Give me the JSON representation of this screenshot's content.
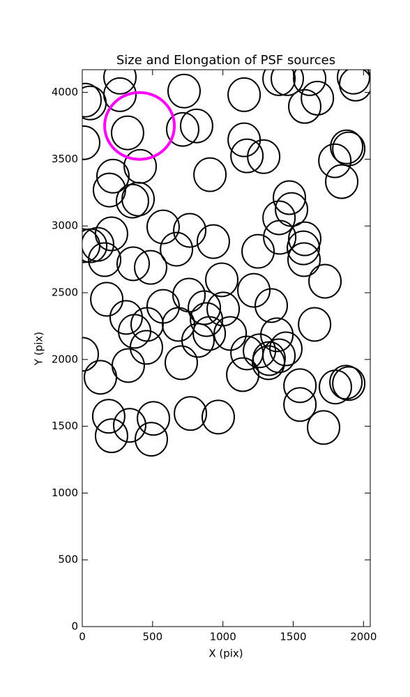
{
  "chart_data": {
    "type": "ellipse",
    "title": "Size and Elongation of PSF sources",
    "x_label": "X (pix)",
    "y_label": "Y (pix)",
    "xlim": [
      0,
      2048
    ],
    "ylim": [
      0,
      4170
    ],
    "xticks": [
      0,
      500,
      1000,
      1500,
      2000
    ],
    "yticks": [
      0,
      500,
      1000,
      1500,
      2000,
      2500,
      3000,
      3500,
      4000
    ],
    "series": [
      {
        "color": "#000000",
        "width": 228,
        "height": 250,
        "x": [
          20,
          55,
          268,
          268,
          10,
          322,
          412,
          218,
          193,
          357,
          397,
          724,
          714,
          813,
          1151,
          1399,
          1458,
          1617,
          1582,
          1672,
          1929,
          1944,
          1151,
          1171,
          1290,
          908,
          1796,
          1845,
          1880,
          1895,
          1473,
          1488,
          1399,
          1404,
          1582,
          1572,
          1577,
          1726,
          1652,
          1250,
          1344,
          1384,
          1448,
          1399,
          1329,
          1260,
          1171,
          1141,
          1324,
          1548,
          1548,
          1800,
          1875,
          1895,
          1716,
          932,
          764,
          670,
          575,
          486,
          362,
          208,
          109,
          60,
          159,
          174,
          312,
          372,
          461,
          456,
          327,
          129,
          0,
          188,
          337,
          208,
          506,
          491,
          769,
          967,
          704,
          684,
          575,
          759,
          868,
          883,
          903,
          823,
          1002,
          1052,
          992,
          1220,
          10
        ],
        "y": [
          3942,
          3921,
          4114,
          3983,
          3623,
          3697,
          3446,
          3373,
          3269,
          3186,
          3201,
          4010,
          3723,
          3749,
          3983,
          4103,
          4103,
          4103,
          3895,
          3957,
          4114,
          4062,
          3645,
          3525,
          3519,
          3384,
          3488,
          3332,
          3592,
          3577,
          3212,
          3123,
          3061,
          2915,
          2904,
          2836,
          2748,
          2586,
          2263,
          2810,
          2404,
          2185,
          2080,
          2028,
          2007,
          2065,
          2049,
          1887,
          1976,
          1804,
          1663,
          1794,
          1830,
          1820,
          1491,
          2883,
          2967,
          2826,
          2993,
          2690,
          2717,
          2941,
          2862,
          2852,
          2748,
          2451,
          2315,
          2211,
          2263,
          2091,
          1955,
          1867,
          2039,
          1575,
          1507,
          1429,
          1559,
          1403,
          1596,
          1569,
          1976,
          2263,
          2398,
          2482,
          2388,
          2299,
          2195,
          2143,
          2378,
          2195,
          2597,
          2518,
          2852
        ]
      },
      {
        "color": "#ff00ff",
        "width": 496,
        "height": 500,
        "x": [
          407
        ],
        "y": [
          3749
        ]
      }
    ]
  }
}
